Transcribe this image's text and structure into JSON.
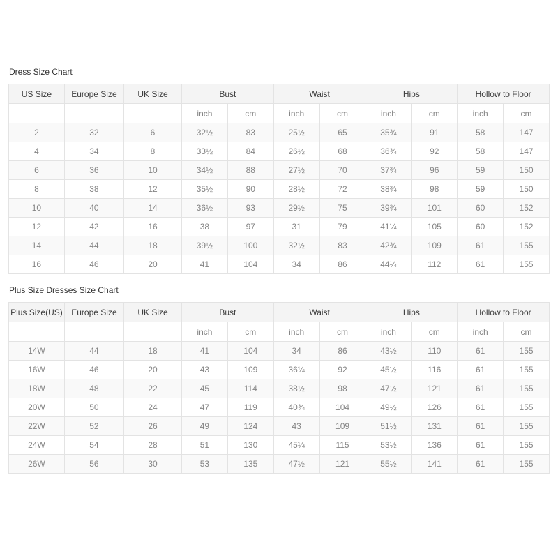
{
  "page": {
    "background": "#ffffff"
  },
  "colors": {
    "header_bg": "#f4f4f4",
    "alt_row_bg": "#f9f9f9",
    "border": "#e3e3e3",
    "header_text": "#3e3e3e",
    "cell_text": "#858585",
    "title_text": "#333333"
  },
  "tables": [
    {
      "title": "Dress Size Chart",
      "size_columns": [
        "US Size",
        "Europe Size",
        "UK Size"
      ],
      "measurement_columns": [
        "Bust",
        "Waist",
        "Hips",
        "Hollow to Floor"
      ],
      "unit_labels": [
        "inch",
        "cm"
      ],
      "rows": [
        [
          "2",
          "32",
          "6",
          "32½",
          "83",
          "25½",
          "65",
          "35¾",
          "91",
          "58",
          "147"
        ],
        [
          "4",
          "34",
          "8",
          "33½",
          "84",
          "26½",
          "68",
          "36¾",
          "92",
          "58",
          "147"
        ],
        [
          "6",
          "36",
          "10",
          "34½",
          "88",
          "27½",
          "70",
          "37¾",
          "96",
          "59",
          "150"
        ],
        [
          "8",
          "38",
          "12",
          "35½",
          "90",
          "28½",
          "72",
          "38¾",
          "98",
          "59",
          "150"
        ],
        [
          "10",
          "40",
          "14",
          "36½",
          "93",
          "29½",
          "75",
          "39¾",
          "101",
          "60",
          "152"
        ],
        [
          "12",
          "42",
          "16",
          "38",
          "97",
          "31",
          "79",
          "41¼",
          "105",
          "60",
          "152"
        ],
        [
          "14",
          "44",
          "18",
          "39½",
          "100",
          "32½",
          "83",
          "42¾",
          "109",
          "61",
          "155"
        ],
        [
          "16",
          "46",
          "20",
          "41",
          "104",
          "34",
          "86",
          "44¼",
          "112",
          "61",
          "155"
        ]
      ]
    },
    {
      "title": "Plus Size Dresses Size Chart",
      "size_columns": [
        "Plus Size(US)",
        "Europe Size",
        "UK Size"
      ],
      "measurement_columns": [
        "Bust",
        "Waist",
        "Hips",
        "Hollow to Floor"
      ],
      "unit_labels": [
        "inch",
        "cm"
      ],
      "rows": [
        [
          "14W",
          "44",
          "18",
          "41",
          "104",
          "34",
          "86",
          "43½",
          "110",
          "61",
          "155"
        ],
        [
          "16W",
          "46",
          "20",
          "43",
          "109",
          "36¼",
          "92",
          "45½",
          "116",
          "61",
          "155"
        ],
        [
          "18W",
          "48",
          "22",
          "45",
          "114",
          "38½",
          "98",
          "47½",
          "121",
          "61",
          "155"
        ],
        [
          "20W",
          "50",
          "24",
          "47",
          "119",
          "40¾",
          "104",
          "49½",
          "126",
          "61",
          "155"
        ],
        [
          "22W",
          "52",
          "26",
          "49",
          "124",
          "43",
          "109",
          "51½",
          "131",
          "61",
          "155"
        ],
        [
          "24W",
          "54",
          "28",
          "51",
          "130",
          "45¼",
          "115",
          "53½",
          "136",
          "61",
          "155"
        ],
        [
          "26W",
          "56",
          "30",
          "53",
          "135",
          "47½",
          "121",
          "55½",
          "141",
          "61",
          "155"
        ]
      ]
    }
  ]
}
